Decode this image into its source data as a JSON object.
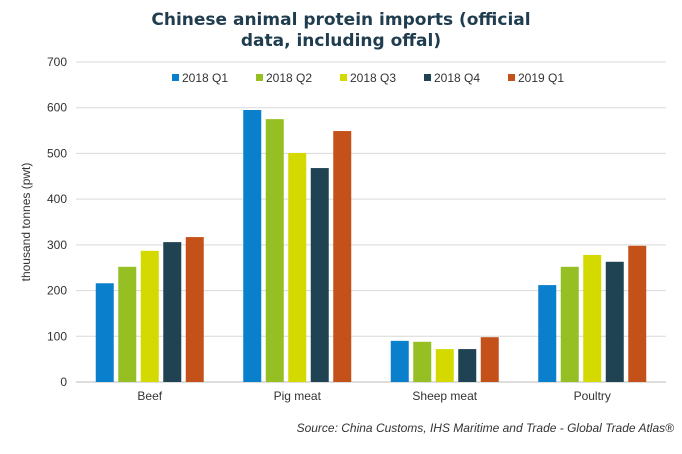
{
  "chart_data": {
    "type": "bar",
    "title": "Chinese animal protein imports (official data, including offal)",
    "ylabel": "thousand tonnes (pwt)",
    "xlabel": "",
    "ylim": [
      0,
      700
    ],
    "yticks": [
      0,
      100,
      200,
      300,
      400,
      500,
      600,
      700
    ],
    "grid": true,
    "legend": "top",
    "categories": [
      "Beef",
      "Pig meat",
      "Sheep meat",
      "Poultry"
    ],
    "series": [
      {
        "name": "2018 Q1",
        "color": "#0a7fcc",
        "values": [
          216,
          595,
          90,
          212
        ]
      },
      {
        "name": "2018 Q2",
        "color": "#95bf22",
        "values": [
          252,
          575,
          88,
          252
        ]
      },
      {
        "name": "2018 Q3",
        "color": "#d4d900",
        "values": [
          287,
          501,
          72,
          278
        ]
      },
      {
        "name": "2018 Q4",
        "color": "#1f4352",
        "values": [
          306,
          468,
          72,
          263
        ]
      },
      {
        "name": "2019 Q1",
        "color": "#c4501a",
        "values": [
          317,
          549,
          98,
          298
        ]
      }
    ],
    "source": "Source: China Customs, IHS Maritime and Trade - Global Trade Atlas®"
  }
}
